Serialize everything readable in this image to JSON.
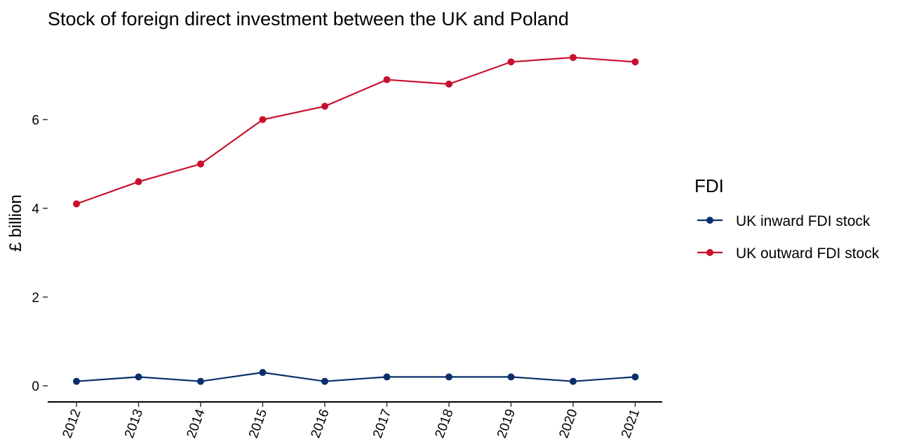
{
  "chart_data": {
    "type": "line",
    "title": "Stock of foreign direct investment between the UK and Poland",
    "xlabel": "",
    "ylabel": "£ billion",
    "x": [
      "2012",
      "2013",
      "2014",
      "2015",
      "2016",
      "2017",
      "2018",
      "2019",
      "2020",
      "2021"
    ],
    "yticks": [
      0,
      2,
      4,
      6
    ],
    "ylim": [
      0,
      7.4
    ],
    "grid": false,
    "legend": {
      "title": "FDI",
      "position": "right"
    },
    "series": [
      {
        "name": "UK inward FDI stock",
        "color": "#0b2f6b",
        "values": [
          0.1,
          0.2,
          0.1,
          0.3,
          0.1,
          0.2,
          0.2,
          0.2,
          0.1,
          0.2
        ]
      },
      {
        "name": "UK outward FDI stock",
        "color": "#c8102e",
        "values": [
          4.1,
          4.6,
          5.0,
          6.0,
          6.3,
          6.9,
          6.8,
          7.3,
          7.4,
          7.3
        ]
      }
    ]
  }
}
